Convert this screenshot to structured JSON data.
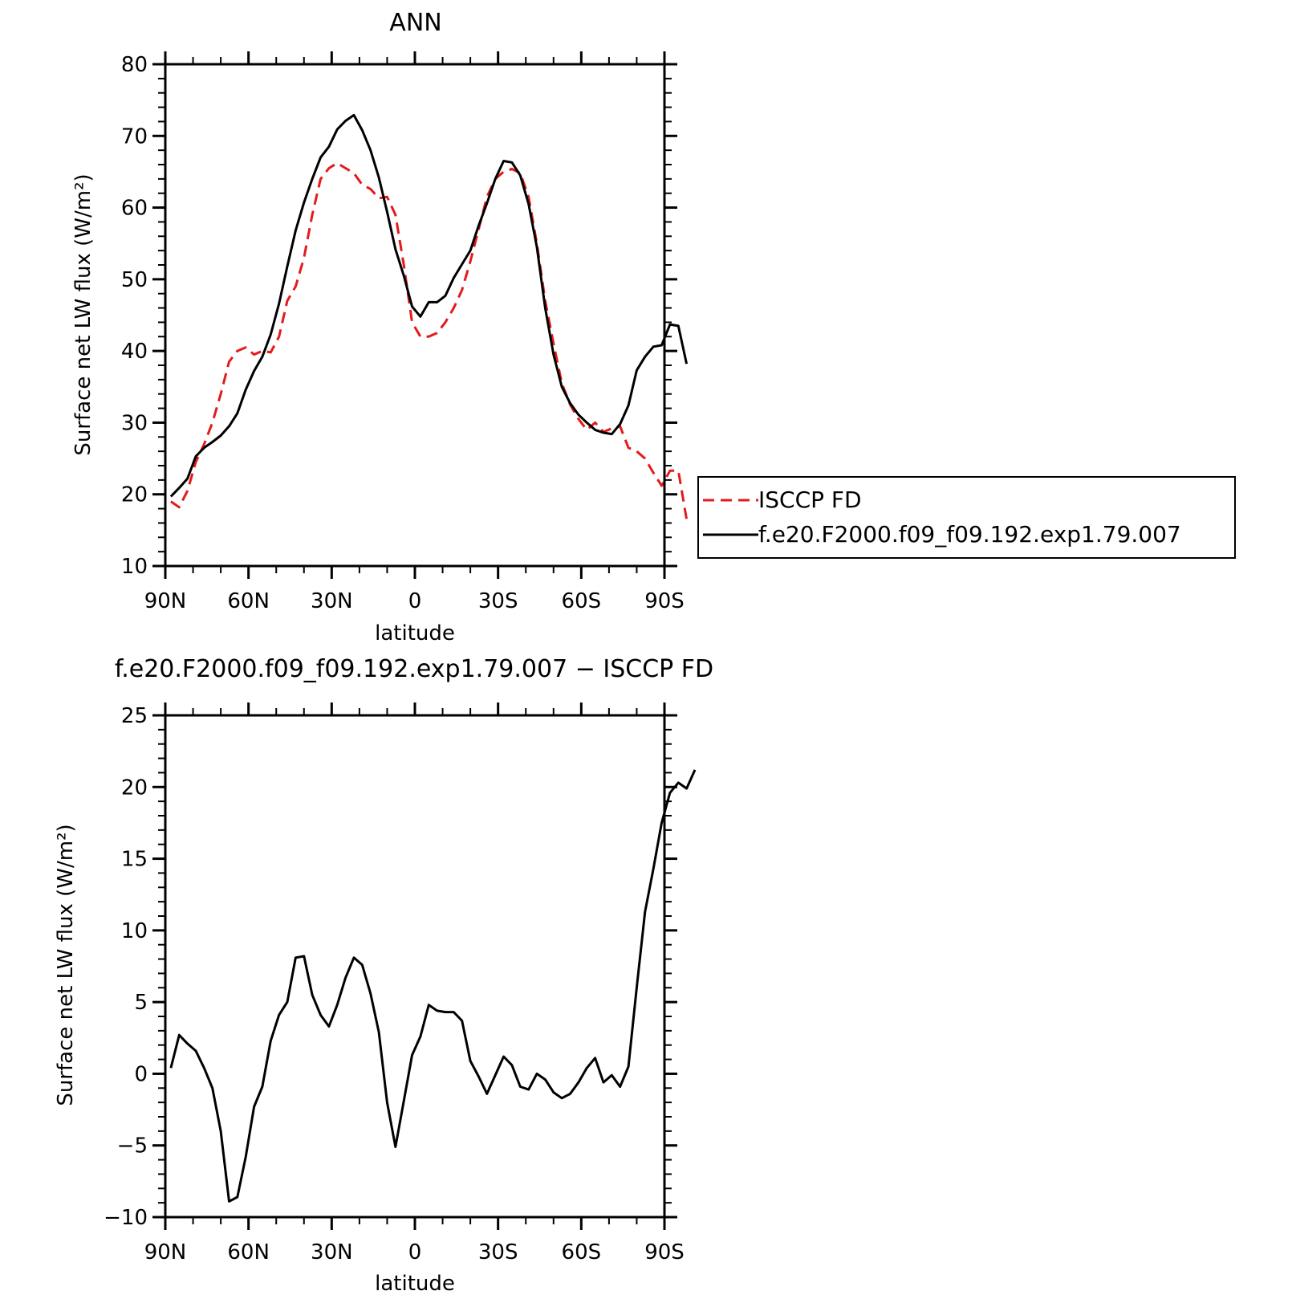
{
  "chart_data": [
    {
      "type": "line",
      "title": "ANN",
      "xlabel": "latitude",
      "ylabel": "Surface net LW flux (W/m²)",
      "xlim": [
        90,
        -90
      ],
      "ylim": [
        10,
        80
      ],
      "xticks": [
        {
          "value": 90,
          "label": "90N"
        },
        {
          "value": 60,
          "label": "60N"
        },
        {
          "value": 30,
          "label": "30N"
        },
        {
          "value": 0,
          "label": "0"
        },
        {
          "value": -30,
          "label": "30S"
        },
        {
          "value": -60,
          "label": "60S"
        },
        {
          "value": -90,
          "label": "90S"
        }
      ],
      "yticks": [
        {
          "value": 10,
          "label": "10"
        },
        {
          "value": 20,
          "label": "20"
        },
        {
          "value": 30,
          "label": "30"
        },
        {
          "value": 40,
          "label": "40"
        },
        {
          "value": 50,
          "label": "50"
        },
        {
          "value": 60,
          "label": "60"
        },
        {
          "value": 70,
          "label": "70"
        },
        {
          "value": 80,
          "label": "80"
        }
      ],
      "legend": {
        "placement": "right"
      },
      "series": [
        {
          "name": "ISCCP FD",
          "color": "#e41a1c",
          "dash": true,
          "points": [
            [
              88,
              19
            ],
            [
              85,
              18.2
            ],
            [
              82,
              20.5
            ],
            [
              79,
              24.5
            ],
            [
              76,
              27
            ],
            [
              73,
              30
            ],
            [
              70,
              34
            ],
            [
              67,
              38.5
            ],
            [
              64,
              40
            ],
            [
              61,
              40.5
            ],
            [
              58,
              39.5
            ],
            [
              55,
              40
            ],
            [
              52,
              39.8
            ],
            [
              49,
              42
            ],
            [
              46,
              47
            ],
            [
              43,
              49
            ],
            [
              40,
              53
            ],
            [
              37,
              59
            ],
            [
              34,
              64
            ],
            [
              31,
              65.5
            ],
            [
              28,
              66.2
            ],
            [
              25,
              65.5
            ],
            [
              22,
              64.8
            ],
            [
              19,
              63.2
            ],
            [
              16,
              62.6
            ],
            [
              13,
              61.3
            ],
            [
              10,
              61.5
            ],
            [
              7,
              59
            ],
            [
              4,
              52
            ],
            [
              1,
              44
            ],
            [
              -2,
              42
            ],
            [
              -5,
              42
            ],
            [
              -8,
              42.5
            ],
            [
              -11,
              44
            ],
            [
              -14,
              46
            ],
            [
              -17,
              48.5
            ],
            [
              -20,
              52.5
            ],
            [
              -23,
              57
            ],
            [
              -26,
              61.5
            ],
            [
              -29,
              64
            ],
            [
              -32,
              65
            ],
            [
              -35,
              65.4
            ],
            [
              -38,
              64.8
            ],
            [
              -41,
              61.5
            ],
            [
              -44,
              55
            ],
            [
              -47,
              47
            ],
            [
              -50,
              41
            ],
            [
              -53,
              35.5
            ],
            [
              -56,
              32.5
            ],
            [
              -59,
              30.5
            ],
            [
              -62,
              29
            ],
            [
              -65,
              30
            ],
            [
              -68,
              28.7
            ],
            [
              -71,
              29.2
            ],
            [
              -74,
              29.5
            ],
            [
              -77,
              26.5
            ],
            [
              -80,
              26
            ],
            [
              -83,
              25
            ],
            [
              -86,
              23
            ],
            [
              -89,
              21.2
            ],
            [
              -92,
              23.3
            ],
            [
              -95,
              23.3
            ],
            [
              -98,
              16.5
            ]
          ]
        },
        {
          "name": "f.e20.F2000.f09_f09.192.exp1.79.007",
          "color": "#000000",
          "dash": false,
          "points": [
            [
              88,
              19.7
            ],
            [
              85,
              20.9
            ],
            [
              82,
              22.2
            ],
            [
              79,
              25.3
            ],
            [
              76,
              26.5
            ],
            [
              73,
              27.3
            ],
            [
              70,
              28.2
            ],
            [
              67,
              29.5
            ],
            [
              64,
              31.3
            ],
            [
              61,
              34.6
            ],
            [
              58,
              37.2
            ],
            [
              55,
              39.2
            ],
            [
              52,
              42.3
            ],
            [
              49,
              46.6
            ],
            [
              46,
              51.8
            ],
            [
              43,
              56.8
            ],
            [
              40,
              60.7
            ],
            [
              37,
              64
            ],
            [
              34,
              67
            ],
            [
              31,
              68.5
            ],
            [
              28,
              70.9
            ],
            [
              25,
              72.1
            ],
            [
              22,
              72.9
            ],
            [
              19,
              70.8
            ],
            [
              16,
              68
            ],
            [
              13,
              64.2
            ],
            [
              10,
              59.4
            ],
            [
              7,
              54.2
            ],
            [
              4,
              50.5
            ],
            [
              1,
              46.2
            ],
            [
              -2,
              44.8
            ],
            [
              -5,
              46.8
            ],
            [
              -8,
              46.8
            ],
            [
              -11,
              47.7
            ],
            [
              -14,
              50.2
            ],
            [
              -17,
              52.1
            ],
            [
              -20,
              54
            ],
            [
              -23,
              57.5
            ],
            [
              -26,
              60.6
            ],
            [
              -29,
              64
            ],
            [
              -32,
              66.5
            ],
            [
              -35,
              66.3
            ],
            [
              -38,
              64.5
            ],
            [
              -41,
              60.5
            ],
            [
              -44,
              54.5
            ],
            [
              -47,
              46
            ],
            [
              -50,
              39.5
            ],
            [
              -53,
              35
            ],
            [
              -56,
              32.7
            ],
            [
              -59,
              31.1
            ],
            [
              -62,
              30
            ],
            [
              -65,
              29
            ],
            [
              -68,
              28.6
            ],
            [
              -71,
              28.4
            ],
            [
              -74,
              29.8
            ],
            [
              -77,
              32.4
            ],
            [
              -80,
              37.3
            ],
            [
              -83,
              39.2
            ],
            [
              -86,
              40.6
            ],
            [
              -89,
              40.8
            ],
            [
              -92,
              43.7
            ],
            [
              -95,
              43.5
            ],
            [
              -98,
              38.2
            ]
          ]
        }
      ]
    },
    {
      "type": "line",
      "title": "f.e20.F2000.f09_f09.192.exp1.79.007 − ISCCP FD",
      "xlabel": "latitude",
      "ylabel": "Surface net LW flux (W/m²)",
      "xlim": [
        90,
        -90
      ],
      "ylim": [
        -10,
        25
      ],
      "xticks": [
        {
          "value": 90,
          "label": "90N"
        },
        {
          "value": 60,
          "label": "60N"
        },
        {
          "value": 30,
          "label": "30N"
        },
        {
          "value": 0,
          "label": "0"
        },
        {
          "value": -30,
          "label": "30S"
        },
        {
          "value": -60,
          "label": "60S"
        },
        {
          "value": -90,
          "label": "90S"
        }
      ],
      "yticks": [
        {
          "value": -10,
          "label": "−10"
        },
        {
          "value": -5,
          "label": "−5"
        },
        {
          "value": 0,
          "label": "0"
        },
        {
          "value": 5,
          "label": "5"
        },
        {
          "value": 10,
          "label": "10"
        },
        {
          "value": 15,
          "label": "15"
        },
        {
          "value": 20,
          "label": "20"
        },
        {
          "value": 25,
          "label": "25"
        }
      ],
      "series": [
        {
          "color": "#000000",
          "dash": false,
          "points": [
            [
              88,
              0.4
            ],
            [
              85,
              2.7
            ],
            [
              82,
              2.1
            ],
            [
              79,
              1.6
            ],
            [
              76,
              0.4
            ],
            [
              73,
              -1
            ],
            [
              70,
              -4
            ],
            [
              67,
              -8.9
            ],
            [
              64,
              -8.6
            ],
            [
              61,
              -5.8
            ],
            [
              58,
              -2.3
            ],
            [
              55,
              -0.9
            ],
            [
              52,
              2.3
            ],
            [
              49,
              4.1
            ],
            [
              46,
              5
            ],
            [
              43,
              8.1
            ],
            [
              40,
              8.2
            ],
            [
              37,
              5.5
            ],
            [
              34,
              4.1
            ],
            [
              31,
              3.3
            ],
            [
              28,
              4.8
            ],
            [
              25,
              6.7
            ],
            [
              22,
              8.1
            ],
            [
              19,
              7.6
            ],
            [
              16,
              5.6
            ],
            [
              13,
              2.9
            ],
            [
              10,
              -2
            ],
            [
              7,
              -5.1
            ],
            [
              4,
              -1.9
            ],
            [
              1,
              1.3
            ],
            [
              -2,
              2.6
            ],
            [
              -5,
              4.8
            ],
            [
              -8,
              4.4
            ],
            [
              -11,
              4.3
            ],
            [
              -14,
              4.3
            ],
            [
              -17,
              3.7
            ],
            [
              -20,
              0.9
            ],
            [
              -23,
              -0.2
            ],
            [
              -26,
              -1.4
            ],
            [
              -29,
              -0.1
            ],
            [
              -32,
              1.2
            ],
            [
              -35,
              0.6
            ],
            [
              -38,
              -0.9
            ],
            [
              -41,
              -1.1
            ],
            [
              -44,
              0
            ],
            [
              -47,
              -0.4
            ],
            [
              -50,
              -1.3
            ],
            [
              -53,
              -1.7
            ],
            [
              -56,
              -1.4
            ],
            [
              -59,
              -0.6
            ],
            [
              -62,
              0.4
            ],
            [
              -65,
              1.1
            ],
            [
              -68,
              -0.6
            ],
            [
              -71,
              -0.1
            ],
            [
              -74,
              -0.9
            ],
            [
              -77,
              0.5
            ],
            [
              -80,
              6
            ],
            [
              -83,
              11.3
            ],
            [
              -86,
              14.3
            ],
            [
              -89,
              17.5
            ],
            [
              -92,
              19.6
            ],
            [
              -95,
              20.3
            ],
            [
              -98,
              19.9
            ],
            [
              -101,
              21.2
            ]
          ]
        }
      ]
    }
  ]
}
